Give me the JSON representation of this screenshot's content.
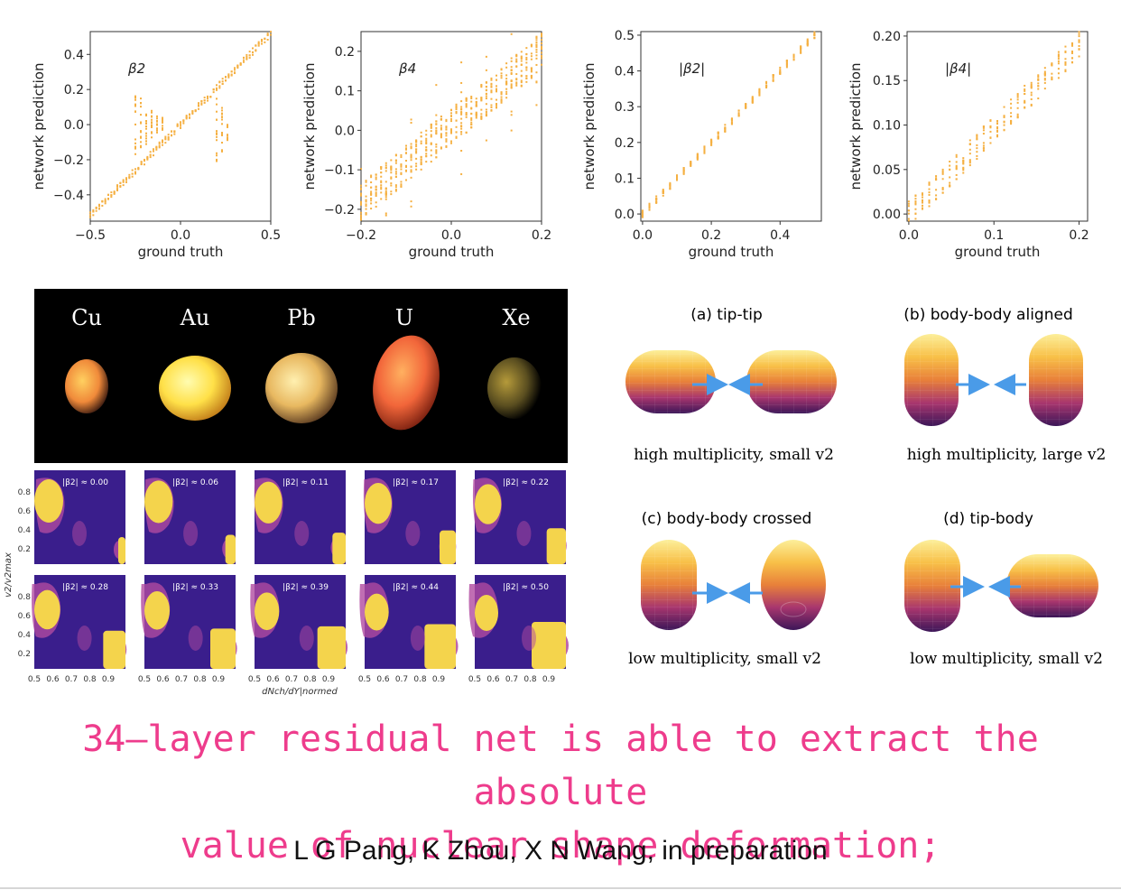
{
  "chart_data": [
    {
      "type": "scatter",
      "title": "β2",
      "xlabel": "ground truth",
      "ylabel": "network prediction",
      "xlim": [
        -0.5,
        0.5
      ],
      "ylim": [
        -0.55,
        0.53
      ],
      "xticks": [
        "−0.5",
        "0.0",
        "0.5"
      ],
      "yticks": [
        "−0.4",
        "−0.2",
        "0.0",
        "0.2",
        "0.4"
      ],
      "ytick_values": [
        -0.4,
        -0.2,
        0.0,
        0.2,
        0.4
      ],
      "xtick_values": [
        -0.5,
        0.0,
        0.5
      ],
      "series": [
        {
          "name": "diagonal",
          "x": [
            -0.5,
            0.5
          ],
          "y": [
            -0.52,
            0.52
          ]
        },
        {
          "name": "scatter_columns",
          "x": [
            -0.25,
            -0.22,
            -0.19,
            -0.16,
            -0.13,
            -0.1,
            0.2,
            0.23,
            0.26
          ],
          "y_low": [
            -0.22,
            -0.15,
            -0.12,
            -0.08,
            -0.05,
            -0.03,
            -0.22,
            -0.16,
            -0.1
          ],
          "y_high": [
            0.2,
            0.18,
            0.1,
            0.08,
            0.05,
            0.04,
            0.15,
            0.1,
            0.05
          ]
        }
      ]
    },
    {
      "type": "scatter",
      "title": "β4",
      "xlabel": "ground truth",
      "ylabel": "network prediction",
      "xlim": [
        -0.2,
        0.2
      ],
      "ylim": [
        -0.23,
        0.25
      ],
      "xticks": [
        "−0.2",
        "0.0",
        "0.2"
      ],
      "xtick_values": [
        -0.2,
        0.0,
        0.2
      ],
      "yticks": [
        "−0.2",
        "−0.1",
        "0.0",
        "0.1",
        "0.2"
      ],
      "ytick_values": [
        -0.2,
        -0.1,
        0.0,
        0.1,
        0.2
      ],
      "series": [
        {
          "name": "prediction_band",
          "x": [
            -0.2,
            0.2
          ],
          "y_center": [
            -0.18,
            0.2
          ],
          "spread": 0.06
        }
      ]
    },
    {
      "type": "scatter",
      "title": "|β2|",
      "xlabel": "ground truth",
      "ylabel": "network prediction",
      "xlim": [
        -0.005,
        0.52
      ],
      "ylim": [
        -0.02,
        0.51
      ],
      "xticks": [
        "0.0",
        "0.2",
        "0.4"
      ],
      "xtick_values": [
        0.0,
        0.2,
        0.4
      ],
      "yticks": [
        "0.0",
        "0.1",
        "0.2",
        "0.3",
        "0.4",
        "0.5"
      ],
      "ytick_values": [
        0.0,
        0.1,
        0.2,
        0.3,
        0.4,
        0.5
      ],
      "series": [
        {
          "name": "diagonal_columns",
          "x": [
            0.0,
            0.5
          ],
          "y": [
            0.0,
            0.5
          ],
          "spread": 0.02
        }
      ]
    },
    {
      "type": "scatter",
      "title": "|β4|",
      "xlabel": "ground truth",
      "ylabel": "network prediction",
      "xlim": [
        -0.002,
        0.21
      ],
      "ylim": [
        -0.008,
        0.205
      ],
      "xticks": [
        "0.0",
        "0.1",
        "0.2"
      ],
      "xtick_values": [
        0.0,
        0.1,
        0.2
      ],
      "yticks": [
        "0.00",
        "0.05",
        "0.10",
        "0.15",
        "0.20"
      ],
      "ytick_values": [
        0.0,
        0.05,
        0.1,
        0.15,
        0.2
      ],
      "series": [
        {
          "name": "diagonal_columns",
          "x": [
            0.0,
            0.2
          ],
          "y": [
            0.0,
            0.19
          ],
          "spread": 0.03
        }
      ]
    }
  ],
  "nuclei": {
    "labels": [
      "Cu",
      "Au",
      "Pb",
      "U",
      "Xe"
    ],
    "colors": [
      "#f59a3c",
      "#ffe15a",
      "#f0c060",
      "#f56a3c",
      "#7a6a2a"
    ]
  },
  "heatmaps": {
    "ylabel": "v2/v2max",
    "xlabel": "dNch/dY|normed",
    "xticks": [
      "0.5",
      "0.6",
      "0.7",
      "0.8",
      "0.9"
    ],
    "yticks": [
      "0.8",
      "0.6",
      "0.4",
      "0.2"
    ],
    "panels_row1": [
      "|β2| ≈ 0.00",
      "|β2| ≈ 0.06",
      "|β2| ≈ 0.11",
      "|β2| ≈ 0.17",
      "|β2| ≈ 0.22"
    ],
    "panels_row2": [
      "|β2| ≈ 0.28",
      "|β2| ≈ 0.33",
      "|β2| ≈ 0.39",
      "|β2| ≈ 0.44",
      "|β2| ≈ 0.50"
    ],
    "colors": {
      "background": "#3a1e8c",
      "mid": "#b04aa0",
      "high": "#f4d44c"
    }
  },
  "collisions": [
    {
      "title": "(a) tip-tip",
      "caption": "high multiplicity, small v2"
    },
    {
      "title": "(b) body-body aligned",
      "caption": "high multiplicity, large v2"
    },
    {
      "title": "(c) body-body crossed",
      "caption": "low multiplicity, small v2"
    },
    {
      "title": "(d) tip-body",
      "caption": "low multiplicity, small v2"
    }
  ],
  "headline": {
    "line1": "34—layer residual net is able to extract the absolute",
    "line2": "value of nuclear shape deformation;"
  },
  "authors": "L G Pang, K Zhou, X N Wang, in preparation",
  "colors": {
    "points": "#f5b042",
    "arrow": "#4a9be8",
    "headline": "#ee3c8c"
  }
}
